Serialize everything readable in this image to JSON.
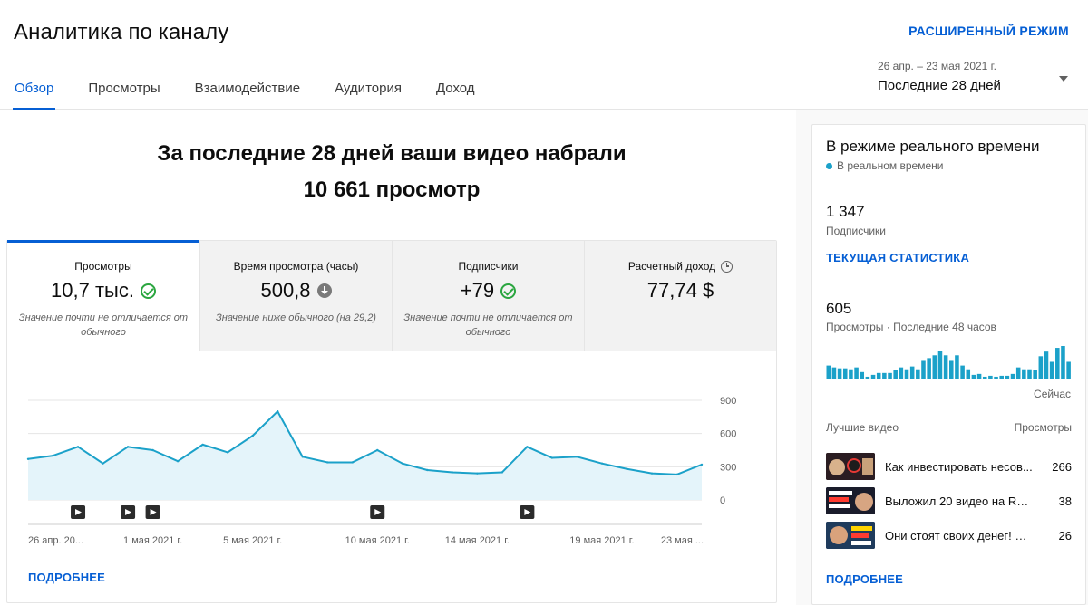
{
  "header": {
    "title": "Аналитика по каналу",
    "advanced_mode": "РАСШИРЕННЫЙ РЕЖИМ",
    "tabs": [
      {
        "label": "Обзор",
        "active": true
      },
      {
        "label": "Просмотры",
        "active": false
      },
      {
        "label": "Взаимодействие",
        "active": false
      },
      {
        "label": "Аудитория",
        "active": false
      },
      {
        "label": "Доход",
        "active": false
      }
    ],
    "date_range": {
      "dates": "26 апр. – 23 мая 2021 г.",
      "label": "Последние 28 дней"
    }
  },
  "headline": {
    "line1": "За последние 28 дней ваши видео набрали",
    "line2": "10 661 просмотр"
  },
  "metrics": [
    {
      "label": "Просмотры",
      "value": "10,7 тыс.",
      "status_icon": "check-circle-icon",
      "note": "Значение почти не отличается от обычного"
    },
    {
      "label": "Время просмотра (часы)",
      "value": "500,8",
      "status_icon": "arrow-down-circle-icon",
      "note": "Значение ниже обычного (на 29,2)"
    },
    {
      "label": "Подписчики",
      "value": "+79",
      "status_icon": "check-circle-icon",
      "note": "Значение почти не отличается от обычного"
    },
    {
      "label": "Расчетный доход",
      "value": "77,74 $",
      "label_icon": "clock-icon",
      "note": ""
    }
  ],
  "chart_data": {
    "type": "area",
    "series": [
      {
        "values": [
          370,
          400,
          480,
          330,
          480,
          450,
          350,
          500,
          430,
          580,
          800,
          390,
          340,
          340,
          450,
          330,
          270,
          250,
          240,
          250,
          480,
          380,
          390,
          330,
          280,
          240,
          230,
          320
        ]
      }
    ],
    "ylim": [
      0,
      900
    ],
    "yticks": [
      "900",
      "600",
      "300",
      "0"
    ],
    "xticks": [
      {
        "index": 0,
        "label": "26 апр. 20..."
      },
      {
        "index": 5,
        "label": "1 мая 2021 г."
      },
      {
        "index": 9,
        "label": "5 мая 2021 г."
      },
      {
        "index": 14,
        "label": "10 мая 2021 г."
      },
      {
        "index": 18,
        "label": "14 мая 2021 г."
      },
      {
        "index": 23,
        "label": "19 мая 2021 г."
      },
      {
        "index": 27,
        "label": "23 мая ..."
      }
    ],
    "video_markers": [
      2,
      4,
      5,
      14,
      20
    ],
    "colors": {
      "line": "#1ba1c9",
      "fill": "#e4f4fa",
      "grid": "#e5e5e5",
      "axis": "#cccccc"
    }
  },
  "overview_more": "ПОДРОБНЕЕ",
  "realtime": {
    "title": "В режиме реального времени",
    "live_label": "В реальном времени",
    "subscribers_value": "1 347",
    "subscribers_label": "Подписчики",
    "current_stats_link": "ТЕКУЩАЯ СТАТИСТИКА",
    "views_value": "605",
    "views_label": "Просмотры · Последние 48 часов",
    "bars": [
      14,
      12,
      11,
      11,
      10,
      12,
      7,
      2,
      4,
      6,
      6,
      6,
      9,
      12,
      10,
      13,
      10,
      19,
      22,
      25,
      30,
      25,
      19,
      25,
      14,
      10,
      4,
      5,
      2,
      3,
      2,
      3,
      3,
      5,
      12,
      10,
      10,
      9,
      24,
      29,
      18,
      33,
      35,
      18
    ],
    "now_label": "Сейчас",
    "top_videos_header": "Лучшие видео",
    "views_header": "Просмотры",
    "top_videos": [
      {
        "title": "Как инвестировать несов...",
        "views": "266"
      },
      {
        "title": "Выложил 20 видео на RuTu...",
        "views": "38"
      },
      {
        "title": "Они стоят своих денег! Обз...",
        "views": "26"
      }
    ],
    "more_link": "ПОДРОБНЕЕ",
    "bar_color": "#1ba1c9"
  }
}
